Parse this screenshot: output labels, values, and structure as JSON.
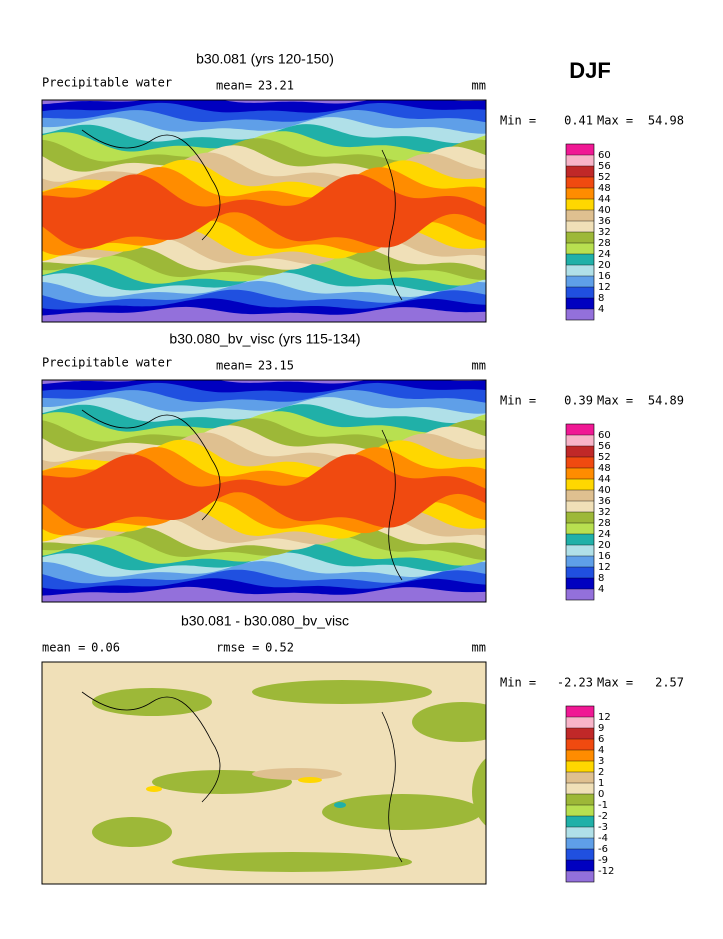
{
  "season": "DJF",
  "panels": [
    {
      "title": "b30.081 (yrs 120-150)",
      "field_label": "Precipitable water",
      "stats": [
        {
          "label": "mean=",
          "value": 23.21
        }
      ],
      "units": "mm",
      "min_label": "Min =",
      "min": 0.41,
      "max_label": "Max =",
      "max": 54.98,
      "colorbar": {
        "levels": [
          60,
          56,
          52,
          48,
          44,
          40,
          36,
          32,
          28,
          24,
          20,
          16,
          12,
          8,
          4
        ],
        "colors": [
          "#f01894",
          "#f8b4c8",
          "#c02828",
          "#f04a10",
          "#ff8c00",
          "#ffd700",
          "#dfc090",
          "#f0e0b8",
          "#9db838",
          "#b8e050",
          "#20b0a8",
          "#b0e0e8",
          "#5f9fe8",
          "#2050e0",
          "#0000c0",
          "#9370db"
        ]
      }
    },
    {
      "title": "b30.080_bv_visc (yrs 115-134)",
      "field_label": "Precipitable water",
      "stats": [
        {
          "label": "mean=",
          "value": 23.15
        }
      ],
      "units": "mm",
      "min_label": "Min =",
      "min": 0.39,
      "max_label": "Max =",
      "max": 54.89,
      "colorbar": {
        "levels": [
          60,
          56,
          52,
          48,
          44,
          40,
          36,
          32,
          28,
          24,
          20,
          16,
          12,
          8,
          4
        ],
        "colors": [
          "#f01894",
          "#f8b4c8",
          "#c02828",
          "#f04a10",
          "#ff8c00",
          "#ffd700",
          "#dfc090",
          "#f0e0b8",
          "#9db838",
          "#b8e050",
          "#20b0a8",
          "#b0e0e8",
          "#5f9fe8",
          "#2050e0",
          "#0000c0",
          "#9370db"
        ]
      }
    },
    {
      "title": "b30.081 - b30.080_bv_visc",
      "stats": [
        {
          "label": "mean =",
          "value": 0.06
        },
        {
          "label": "rmse =",
          "value": 0.52
        }
      ],
      "units": "mm",
      "min_label": "Min =",
      "min": -2.23,
      "max_label": "Max =",
      "max": 2.57,
      "colorbar": {
        "levels": [
          12,
          9,
          6,
          4,
          3,
          2,
          1,
          0,
          -1,
          -2,
          -3,
          -4,
          -6,
          -9,
          -12
        ],
        "colors": [
          "#f01894",
          "#f8b4c8",
          "#c02828",
          "#f04a10",
          "#ff8c00",
          "#ffd700",
          "#dfc090",
          "#f0e0b8",
          "#9db838",
          "#b8e050",
          "#20b0a8",
          "#b0e0e8",
          "#5f9fe8",
          "#2050e0",
          "#0000c0",
          "#9370db"
        ]
      }
    }
  ]
}
